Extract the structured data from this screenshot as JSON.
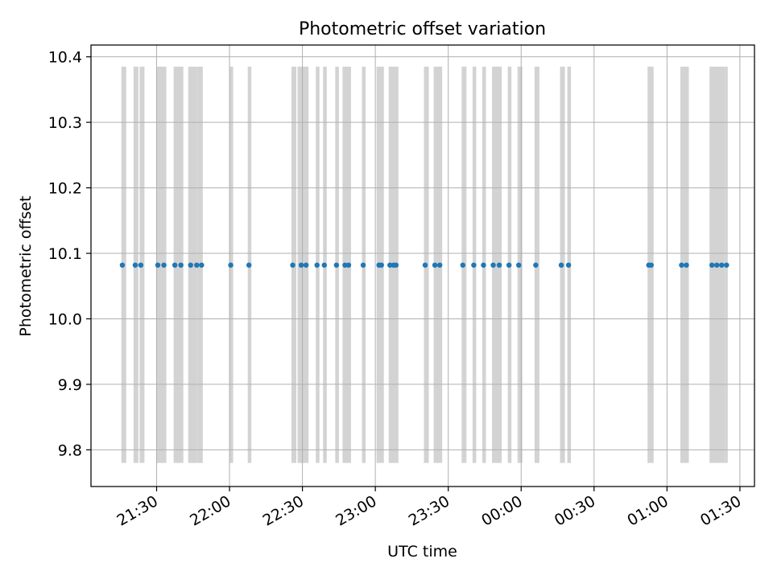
{
  "chart_data": {
    "type": "scatter",
    "title": "Photometric offset variation",
    "xlabel": "UTC time",
    "ylabel": "Photometric offset",
    "x_ticks": [
      "21:30",
      "22:00",
      "22:30",
      "23:00",
      "23:30",
      "00:00",
      "00:30",
      "01:00",
      "01:30"
    ],
    "x_tick_minutes": [
      1290,
      1320,
      1350,
      1380,
      1410,
      1440,
      1470,
      1500,
      1530
    ],
    "xlim_minutes": [
      1263,
      1536
    ],
    "y_ticks": [
      "9.8",
      "9.9",
      "10.0",
      "10.1",
      "10.2",
      "10.3",
      "10.4"
    ],
    "y_tick_values": [
      9.8,
      9.9,
      10.0,
      10.1,
      10.2,
      10.3,
      10.4
    ],
    "ylim": [
      9.744,
      10.418
    ],
    "grid": true,
    "series": [
      {
        "color": "#1f77b4",
        "x_minutes": [
          1275.9,
          1281.2,
          1283.5,
          1290.5,
          1293.0,
          1297.5,
          1300.0,
          1304.0,
          1306.5,
          1308.5,
          1320.5,
          1328.0,
          1346.0,
          1349.5,
          1351.5,
          1356.0,
          1359.0,
          1364.0,
          1367.5,
          1369.0,
          1375.0,
          1381.5,
          1382.5,
          1386.0,
          1387.5,
          1388.5,
          1400.5,
          1404.5,
          1406.5,
          1416.0,
          1420.5,
          1424.5,
          1428.5,
          1431.0,
          1435.0,
          1439.0,
          1446.0,
          1456.5,
          1459.5,
          1492.5,
          1493.5,
          1506.0,
          1508.0,
          1518.5,
          1520.5,
          1522.5,
          1524.5
        ],
        "y": [
          10.082,
          10.082,
          10.082,
          10.082,
          10.082,
          10.082,
          10.082,
          10.082,
          10.082,
          10.082,
          10.082,
          10.082,
          10.082,
          10.082,
          10.082,
          10.082,
          10.082,
          10.082,
          10.082,
          10.082,
          10.082,
          10.082,
          10.082,
          10.082,
          10.082,
          10.082,
          10.082,
          10.082,
          10.082,
          10.082,
          10.082,
          10.082,
          10.082,
          10.082,
          10.082,
          10.082,
          10.082,
          10.082,
          10.082,
          10.082,
          10.082,
          10.082,
          10.082,
          10.082,
          10.082,
          10.082,
          10.082
        ]
      }
    ],
    "shaded_spans": {
      "color": "#d3d3d3",
      "y_range": [
        9.78,
        10.385
      ],
      "x_minutes": [
        [
          1275.5,
          1277.5
        ],
        [
          1280.5,
          1282.5
        ],
        [
          1283.0,
          1285.0
        ],
        [
          1290.0,
          1294.0
        ],
        [
          1297.0,
          1301.0
        ],
        [
          1303.0,
          1306.5
        ],
        [
          1306.5,
          1309.0
        ],
        [
          1320.0,
          1321.5
        ],
        [
          1327.5,
          1329.0
        ],
        [
          1345.5,
          1347.5
        ],
        [
          1348.0,
          1352.5
        ],
        [
          1355.5,
          1357.0
        ],
        [
          1358.5,
          1360.0
        ],
        [
          1363.5,
          1365.0
        ],
        [
          1366.5,
          1370.0
        ],
        [
          1374.5,
          1376.0
        ],
        [
          1380.5,
          1383.5
        ],
        [
          1385.5,
          1389.5
        ],
        [
          1400.0,
          1402.0
        ],
        [
          1404.0,
          1407.5
        ],
        [
          1415.5,
          1417.5
        ],
        [
          1420.0,
          1421.5
        ],
        [
          1424.0,
          1425.5
        ],
        [
          1428.0,
          1432.0
        ],
        [
          1434.5,
          1436.0
        ],
        [
          1438.5,
          1440.5
        ],
        [
          1445.5,
          1447.5
        ],
        [
          1456.0,
          1458.0
        ],
        [
          1459.0,
          1460.5
        ],
        [
          1492.0,
          1494.5
        ],
        [
          1505.5,
          1509.0
        ],
        [
          1517.5,
          1524.0
        ],
        [
          1524.0,
          1525.0
        ]
      ]
    }
  }
}
